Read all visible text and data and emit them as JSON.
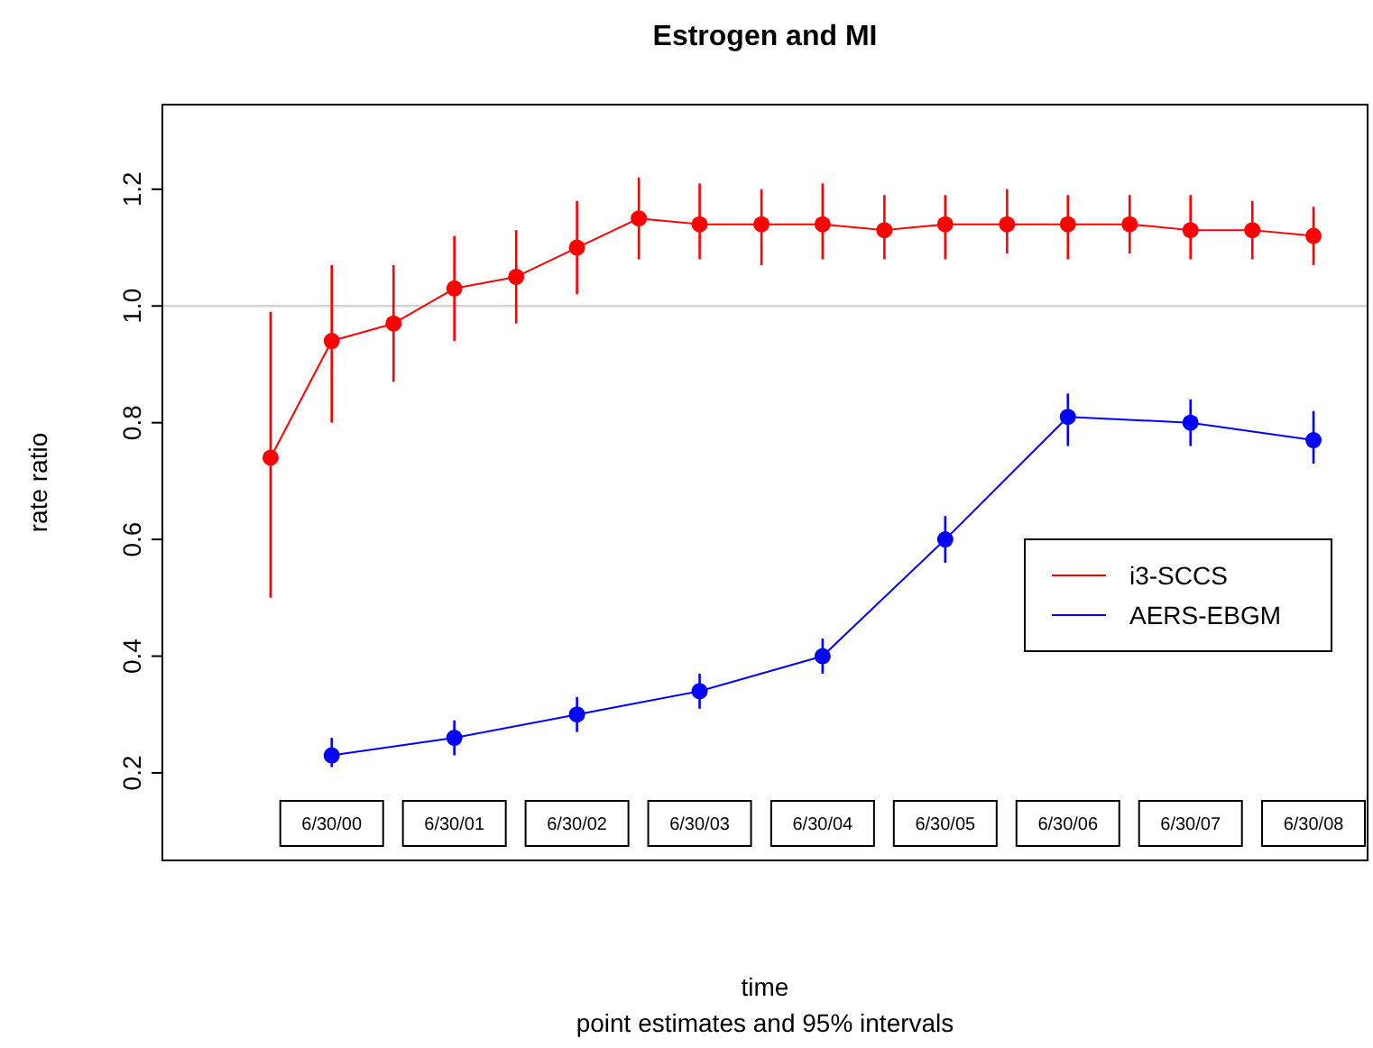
{
  "chart_data": {
    "type": "line",
    "title": "Estrogen and MI",
    "subtitle": "point estimates and 95% intervals",
    "xlabel": "time",
    "ylabel": "rate ratio",
    "xlim": [
      "1999-02-12",
      "2008-12-08"
    ],
    "ylim": [
      0.05,
      1.345
    ],
    "yticks": [
      {
        "value": 0.2,
        "label": "0.2"
      },
      {
        "value": 0.4,
        "label": "0.4"
      },
      {
        "value": 0.6,
        "label": "0.6"
      },
      {
        "value": 0.8,
        "label": "0.8"
      },
      {
        "value": 1.0,
        "label": "1.0"
      },
      {
        "value": 1.2,
        "label": "1.2"
      }
    ],
    "xticks": [
      {
        "value": "2000-06-30",
        "label": "6/30/00"
      },
      {
        "value": "2001-06-30",
        "label": "6/30/01"
      },
      {
        "value": "2002-06-30",
        "label": "6/30/02"
      },
      {
        "value": "2003-06-30",
        "label": "6/30/03"
      },
      {
        "value": "2004-06-30",
        "label": "6/30/04"
      },
      {
        "value": "2005-06-30",
        "label": "6/30/05"
      },
      {
        "value": "2006-06-30",
        "label": "6/30/06"
      },
      {
        "value": "2007-06-30",
        "label": "6/30/07"
      },
      {
        "value": "2008-06-30",
        "label": "6/30/08"
      }
    ],
    "grid": false,
    "legend": "right",
    "marker": "circle",
    "line_style": "solid",
    "ref_lines": [
      {
        "axis": "y",
        "value": 1.0,
        "color": "#d3d3d3"
      }
    ],
    "series": [
      {
        "name": "i3-SCCS",
        "color": "#ff0000",
        "x": [
          "1999-12-31",
          "2000-06-30",
          "2000-12-31",
          "2001-06-30",
          "2001-12-31",
          "2002-06-30",
          "2002-12-31",
          "2003-06-30",
          "2003-12-31",
          "2004-06-30",
          "2004-12-31",
          "2005-06-30",
          "2005-12-31",
          "2006-06-30",
          "2006-12-31",
          "2007-06-30",
          "2007-12-31",
          "2008-06-30"
        ],
        "values": [
          0.74,
          0.94,
          0.97,
          1.03,
          1.05,
          1.1,
          1.15,
          1.14,
          1.14,
          1.14,
          1.13,
          1.14,
          1.14,
          1.14,
          1.14,
          1.13,
          1.13,
          1.12
        ],
        "errors": [
          [
            0.5,
            0.99
          ],
          [
            0.8,
            1.07
          ],
          [
            0.87,
            1.07
          ],
          [
            0.94,
            1.12
          ],
          [
            0.97,
            1.13
          ],
          [
            1.02,
            1.18
          ],
          [
            1.08,
            1.22
          ],
          [
            1.08,
            1.21
          ],
          [
            1.07,
            1.2
          ],
          [
            1.08,
            1.21
          ],
          [
            1.08,
            1.19
          ],
          [
            1.08,
            1.19
          ],
          [
            1.09,
            1.2
          ],
          [
            1.08,
            1.19
          ],
          [
            1.09,
            1.19
          ],
          [
            1.08,
            1.19
          ],
          [
            1.08,
            1.18
          ],
          [
            1.07,
            1.17
          ]
        ]
      },
      {
        "name": "AERS-EBGM",
        "color": "#0000ff",
        "x": [
          "2000-06-30",
          "2001-06-30",
          "2002-06-30",
          "2003-06-30",
          "2004-06-30",
          "2005-06-30",
          "2006-06-30",
          "2007-06-30",
          "2008-06-30"
        ],
        "values": [
          0.23,
          0.26,
          0.3,
          0.34,
          0.4,
          0.6,
          0.81,
          0.8,
          0.77
        ],
        "errors": [
          [
            0.21,
            0.26
          ],
          [
            0.23,
            0.29
          ],
          [
            0.27,
            0.33
          ],
          [
            0.31,
            0.37
          ],
          [
            0.37,
            0.43
          ],
          [
            0.56,
            0.64
          ],
          [
            0.76,
            0.85
          ],
          [
            0.76,
            0.84
          ],
          [
            0.73,
            0.82
          ]
        ]
      }
    ]
  }
}
